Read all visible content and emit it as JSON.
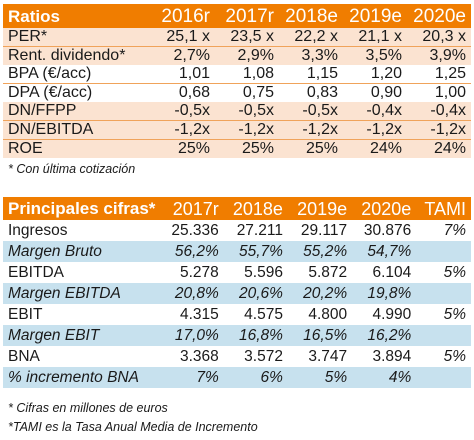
{
  "ratios": {
    "header": [
      "Ratios",
      "2016r",
      "2017r",
      "2018e",
      "2019e",
      "2020e"
    ],
    "rows": [
      [
        "PER*",
        "25,1 x",
        "23,5 x",
        "22,2 x",
        "21,1 x",
        "20,3 x"
      ],
      [
        "Rent. dividendo*",
        "2,7%",
        "2,9%",
        "3,3%",
        "3,5%",
        "3,9%"
      ],
      [
        "BPA (€/acc)",
        "1,01",
        "1,08",
        "1,15",
        "1,20",
        "1,25"
      ],
      [
        "DPA (€/acc)",
        "0,68",
        "0,75",
        "0,83",
        "0,90",
        "1,00"
      ],
      [
        "DN/FFPP",
        "-0,5x",
        "-0,5x",
        "-0,5x",
        "-0,4x",
        "-0,4x"
      ],
      [
        "DN/EBITDA",
        "-1,2x",
        "-1,2x",
        "-1,2x",
        "-1,2x",
        "-1,2x"
      ],
      [
        "ROE",
        "25%",
        "25%",
        "25%",
        "24%",
        "24%"
      ]
    ],
    "note": "* Con última cotización"
  },
  "cifras": {
    "header": [
      "Principales cifras*",
      "2017r",
      "2018e",
      "2019e",
      "2020e",
      "TAMI"
    ],
    "rows": [
      [
        "Ingresos",
        "25.336",
        "27.211",
        "29.117",
        "30.876",
        "7%"
      ],
      [
        "Margen Bruto",
        "56,2%",
        "55,7%",
        "55,2%",
        "54,7%",
        ""
      ],
      [
        "EBITDA",
        "5.278",
        "5.596",
        "5.872",
        "6.104",
        "5%"
      ],
      [
        "Margen EBITDA",
        "20,8%",
        "20,6%",
        "20,2%",
        "19,8%",
        ""
      ],
      [
        "EBIT",
        "4.315",
        "4.575",
        "4.800",
        "4.990",
        "5%"
      ],
      [
        "Margen EBIT",
        "17,0%",
        "16,8%",
        "16,5%",
        "16,2%",
        ""
      ],
      [
        "BNA",
        "3.368",
        "3.572",
        "3.747",
        "3.894",
        "5%"
      ],
      [
        "% incremento BNA",
        "7%",
        "6%",
        "5%",
        "4%",
        ""
      ]
    ],
    "note1": "* Cifras en millones de euros",
    "note2": "*TAMI es la Tasa Anual Media de Incremento"
  },
  "colors": {
    "header_orange": "#f07d00",
    "ratio_row_pink": "#fbe3d1",
    "margin_row_blue": "#c7e1ee"
  }
}
